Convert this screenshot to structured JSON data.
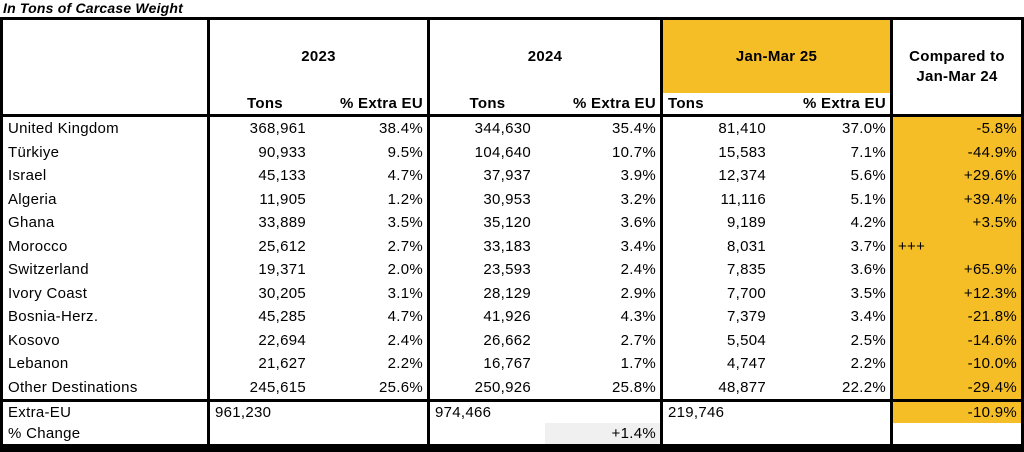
{
  "title": "In Tons of Carcase Weight",
  "colors": {
    "highlight_yellow": "#F5BE27",
    "change_cell_gray": "#F0F0F0",
    "border_black": "#000000"
  },
  "table": {
    "col_groups": {
      "y2023": "2023",
      "y2024": "2024",
      "jm25": "Jan-Mar 25"
    },
    "compared_header": "Compared to Jan-Mar 24",
    "sub": {
      "tons": "Tons",
      "pct": "% Extra EU"
    },
    "rows": [
      {
        "name": "United Kingdom",
        "c": [
          "368,961",
          "38.4%",
          "344,630",
          "35.4%",
          "81,410",
          "37.0%",
          "-5.8%"
        ]
      },
      {
        "name": "Türkiye",
        "c": [
          "90,933",
          "9.5%",
          "104,640",
          "10.7%",
          "15,583",
          "7.1%",
          "-44.9%"
        ]
      },
      {
        "name": "Israel",
        "c": [
          "45,133",
          "4.7%",
          "37,937",
          "3.9%",
          "12,374",
          "5.6%",
          "+29.6%"
        ]
      },
      {
        "name": "Algeria",
        "c": [
          "11,905",
          "1.2%",
          "30,953",
          "3.2%",
          "11,116",
          "5.1%",
          "+39.4%"
        ]
      },
      {
        "name": "Ghana",
        "c": [
          "33,889",
          "3.5%",
          "35,120",
          "3.6%",
          "9,189",
          "4.2%",
          "+3.5%"
        ]
      },
      {
        "name": "Morocco",
        "c": [
          "25,612",
          "2.7%",
          "33,183",
          "3.4%",
          "8,031",
          "3.7%",
          "+++"
        ]
      },
      {
        "name": "Switzerland",
        "c": [
          "19,371",
          "2.0%",
          "23,593",
          "2.4%",
          "7,835",
          "3.6%",
          "+65.9%"
        ]
      },
      {
        "name": "Ivory Coast",
        "c": [
          "30,205",
          "3.1%",
          "28,129",
          "2.9%",
          "7,700",
          "3.5%",
          "+12.3%"
        ]
      },
      {
        "name": "Bosnia-Herz.",
        "c": [
          "45,285",
          "4.7%",
          "41,926",
          "4.3%",
          "7,379",
          "3.4%",
          "-21.8%"
        ]
      },
      {
        "name": "Kosovo",
        "c": [
          "22,694",
          "2.4%",
          "26,662",
          "2.7%",
          "5,504",
          "2.5%",
          "-14.6%"
        ]
      },
      {
        "name": "Lebanon",
        "c": [
          "21,627",
          "2.2%",
          "16,767",
          "1.7%",
          "4,747",
          "2.2%",
          "-10.0%"
        ]
      },
      {
        "name": "Other Destinations",
        "c": [
          "245,615",
          "25.6%",
          "250,926",
          "25.8%",
          "48,877",
          "22.2%",
          "-29.4%"
        ]
      }
    ],
    "totals": {
      "label": "Extra-EU",
      "t2023": "961,230",
      "t2024": "974,466",
      "jm25": "219,746",
      "cmp": "-10.9%"
    },
    "pct_change": {
      "label": "% Change",
      "t2024": "+1.4%"
    }
  }
}
